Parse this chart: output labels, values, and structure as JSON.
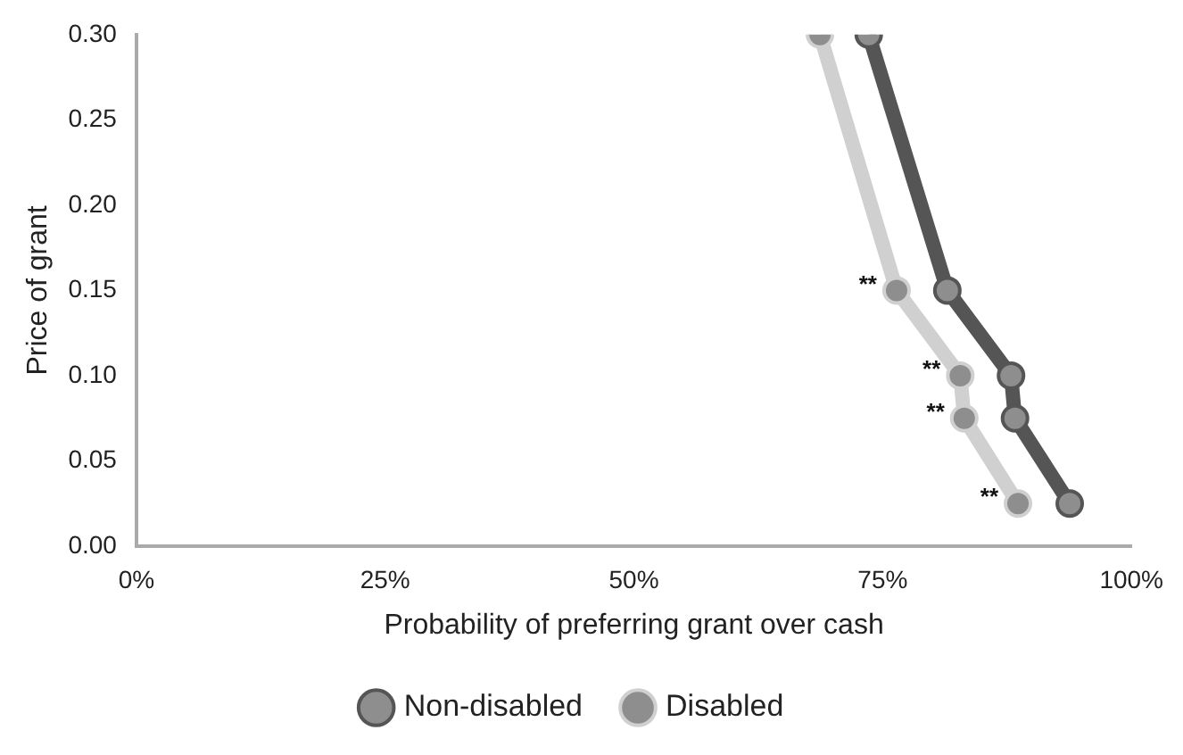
{
  "chart_data": {
    "type": "line",
    "xlabel": "Probability of preferring grant over cash",
    "ylabel": "Price of grant",
    "xlim": [
      0,
      100
    ],
    "xticks": [
      {
        "value": 0,
        "label": "0%"
      },
      {
        "value": 25,
        "label": "25%"
      },
      {
        "value": 50,
        "label": "50%"
      },
      {
        "value": 75,
        "label": "75%"
      },
      {
        "value": 100,
        "label": "100%"
      }
    ],
    "ylim": [
      0,
      0.3
    ],
    "yticks": [
      {
        "value": 0,
        "label": "0.00"
      },
      {
        "value": 0.05,
        "label": "0.05"
      },
      {
        "value": 0.1,
        "label": "0.10"
      },
      {
        "value": 0.15,
        "label": "0.15"
      },
      {
        "value": 0.2,
        "label": "0.20"
      },
      {
        "value": 0.25,
        "label": "0.25"
      },
      {
        "value": 0.3,
        "label": "0.30"
      }
    ],
    "series": [
      {
        "name": "Non-disabled",
        "color": "#555555",
        "x": [
          73.6,
          81.5,
          87.9,
          88.3,
          93.8
        ],
        "values": [
          0.3,
          0.15,
          0.1,
          0.075,
          0.025
        ]
      },
      {
        "name": "Disabled",
        "color": "#d0d0d0",
        "x": [
          68.7,
          76.4,
          82.8,
          83.2,
          88.6
        ],
        "values": [
          0.3,
          0.15,
          0.1,
          0.075,
          0.025
        ]
      }
    ],
    "annotations": [
      {
        "text": "**",
        "x": 76.4,
        "y": 0.15
      },
      {
        "text": "**",
        "x": 82.8,
        "y": 0.1
      },
      {
        "text": "**",
        "x": 83.2,
        "y": 0.075
      },
      {
        "text": "**",
        "x": 88.6,
        "y": 0.025
      }
    ],
    "marker": "circle",
    "line_style": "solid",
    "grid": false,
    "legend": "bottom"
  }
}
